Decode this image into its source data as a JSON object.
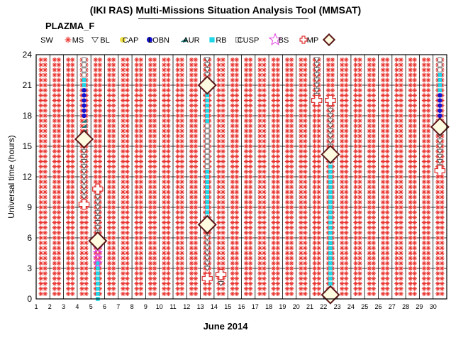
{
  "header": {
    "title": "(IKI RAS) Multi-Missions Situation Analysis Tool (MMSAT)",
    "subtitle": "PLAZMA_F"
  },
  "chart_data": {
    "type": "scatter",
    "title": "(IKI RAS) Multi-Missions Situation Analysis Tool (MMSAT)",
    "subtitle": "PLAZMA_F",
    "xlabel": "June 2014",
    "ylabel": "Universal time (hours)",
    "xlim": [
      1,
      31
    ],
    "ylim": [
      0,
      24
    ],
    "x_ticks": [
      1,
      2,
      3,
      4,
      5,
      6,
      7,
      8,
      9,
      10,
      11,
      12,
      13,
      14,
      15,
      16,
      17,
      18,
      19,
      20,
      21,
      22,
      23,
      24,
      25,
      26,
      27,
      28,
      29,
      30
    ],
    "y_ticks": [
      0,
      3,
      6,
      9,
      12,
      15,
      18,
      21,
      24
    ],
    "grid": true,
    "legend": {
      "placement": "top"
    },
    "legend_entries": [
      {
        "key": "SW",
        "label": "SW",
        "marker": "asterisk",
        "color": "#e8322d"
      },
      {
        "key": "MS",
        "label": "MS",
        "marker": "triangle-down",
        "color": "#555555"
      },
      {
        "key": "BL",
        "label": "BL",
        "marker": "circle",
        "color": "#f2e24a"
      },
      {
        "key": "CAP",
        "label": "CAP",
        "marker": "circle",
        "color": "#1515d0"
      },
      {
        "key": "LOBN",
        "label": "LOBN",
        "marker": "triangle",
        "color": "#237a7a"
      },
      {
        "key": "AUR",
        "label": "AUR",
        "marker": "square",
        "color": "#1ed6e6"
      },
      {
        "key": "RB",
        "label": "RB",
        "marker": "square-open",
        "color": "#888888"
      },
      {
        "key": "CUSP",
        "label": "CUSP",
        "marker": "star",
        "color": "#e040e0"
      },
      {
        "key": "BS",
        "label": "BS",
        "marker": "cross",
        "color": "#e03030"
      },
      {
        "key": "MP",
        "label": "MP",
        "marker": "diamond",
        "color": "#5a1818"
      }
    ],
    "sw_background": {
      "marker": "asterisk",
      "color": "#e8322d",
      "x_positions": [
        1.5,
        2.5,
        3.5,
        4.5,
        5.5,
        6.5,
        7.5,
        8.5,
        9.5,
        10.5,
        11.5,
        12.5,
        13.5,
        14.5,
        15.5,
        16.5,
        17.5,
        18.5,
        19.5,
        20.5,
        21.5,
        22.5,
        23.5,
        24.5,
        25.5,
        26.5,
        27.5,
        28.5,
        29.5,
        30.5
      ],
      "ut_step_hours": 0.5
    },
    "series": [
      {
        "name": "MS",
        "marker": "triangle-down",
        "color": "#555555",
        "points": [
          {
            "x": 4.5,
            "y_from": 9.5,
            "y_to": 15.5
          },
          {
            "x": 5.5,
            "y_from": 6.5,
            "y_to": 10.5
          },
          {
            "x": 13.5,
            "y_from": 3,
            "y_to": 7
          },
          {
            "x": 13.5,
            "y_from": 21.5,
            "y_to": 23.5
          },
          {
            "x": 14.5,
            "y_from": 1.5,
            "y_to": 2.5
          },
          {
            "x": 21.5,
            "y_from": 20,
            "y_to": 23.5
          },
          {
            "x": 22.5,
            "y_from": 14.5,
            "y_to": 19.5
          },
          {
            "x": 30.5,
            "y_from": 13,
            "y_to": 16.5
          }
        ]
      },
      {
        "name": "BL",
        "marker": "circle",
        "color": "#f2e24a",
        "points": [
          {
            "x": 4.5,
            "y": 15.7
          },
          {
            "x": 5.5,
            "y": 5.7
          },
          {
            "x": 13.5,
            "y": 7.3
          },
          {
            "x": 13.5,
            "y": 21.0
          },
          {
            "x": 22.5,
            "y": 14.2
          },
          {
            "x": 22.5,
            "y": 0.4
          },
          {
            "x": 30.5,
            "y": 16.9
          }
        ]
      },
      {
        "name": "CAP",
        "marker": "circle",
        "color": "#1515d0",
        "points": [
          {
            "x": 4.5,
            "y_from": 18.0,
            "y_to": 20.5
          },
          {
            "x": 22.5,
            "y_from": 0.5,
            "y_to": 1.0
          },
          {
            "x": 30.5,
            "y_from": 17.5,
            "y_to": 20.0
          }
        ]
      },
      {
        "name": "LOBN",
        "marker": "triangle",
        "color": "#237a7a",
        "points": [
          {
            "x": 4.5,
            "y_from": 16.0,
            "y_to": 17.5
          }
        ]
      },
      {
        "name": "AUR",
        "marker": "square",
        "color": "#1ed6e6",
        "points": [
          {
            "x": 4.5,
            "y_from": 20.5,
            "y_to": 22.0
          },
          {
            "x": 5.5,
            "y_from": 0,
            "y_to": 3.5
          },
          {
            "x": 13.5,
            "y_from": 8.0,
            "y_to": 20.0
          },
          {
            "x": 22.5,
            "y_from": 1.0,
            "y_to": 13.5
          },
          {
            "x": 30.5,
            "y_from": 20.0,
            "y_to": 22.0
          }
        ]
      },
      {
        "name": "RB",
        "marker": "square-open",
        "color": "#888888",
        "points": [
          {
            "x": 4.5,
            "y_from": 22.0,
            "y_to": 23.5
          },
          {
            "x": 13.5,
            "y_from": 13.0,
            "y_to": 17.0
          },
          {
            "x": 30.5,
            "y_from": 22.5,
            "y_to": 23.5
          }
        ]
      },
      {
        "name": "CUSP",
        "marker": "star",
        "color": "#e040e0",
        "points": [
          {
            "x": 5.5,
            "y_from": 3.5,
            "y_to": 5.5
          }
        ]
      },
      {
        "name": "BS",
        "marker": "cross",
        "color": "#e03030",
        "points": [
          {
            "x": 4.5,
            "y": 9.3
          },
          {
            "x": 5.5,
            "y": 10.8
          },
          {
            "x": 13.5,
            "y": 2.0
          },
          {
            "x": 14.5,
            "y": 2.4
          },
          {
            "x": 21.5,
            "y": 19.5
          },
          {
            "x": 22.5,
            "y": 19.5
          },
          {
            "x": 30.5,
            "y": 12.6
          }
        ]
      },
      {
        "name": "MP",
        "marker": "diamond",
        "color": "#5a1818",
        "points": [
          {
            "x": 4.5,
            "y": 15.7
          },
          {
            "x": 5.5,
            "y": 5.7
          },
          {
            "x": 13.5,
            "y": 7.3
          },
          {
            "x": 13.5,
            "y": 21.0
          },
          {
            "x": 22.5,
            "y": 14.2
          },
          {
            "x": 22.5,
            "y": 0.4
          },
          {
            "x": 30.5,
            "y": 16.9
          }
        ]
      }
    ]
  }
}
